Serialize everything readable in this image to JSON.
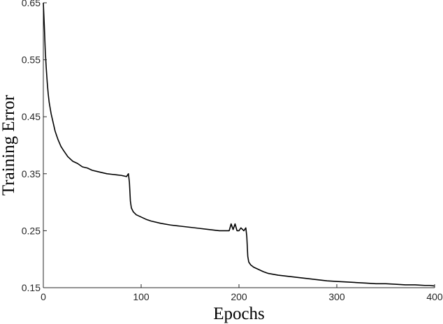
{
  "chart_data": {
    "type": "line",
    "title": "",
    "xlabel": "Epochs",
    "ylabel": "Training Error",
    "xlim": [
      0,
      400
    ],
    "ylim": [
      0.15,
      0.65
    ],
    "xticks": [
      0,
      100,
      200,
      300,
      400
    ],
    "xtick_labels": [
      "0",
      "100",
      "200",
      "300",
      "400"
    ],
    "yticks": [
      0.15,
      0.25,
      0.35,
      0.45,
      0.55,
      0.65
    ],
    "ytick_labels": [
      "0.15",
      "0.25",
      "0.35",
      "0.45",
      "0.55",
      "0.65"
    ],
    "grid": false,
    "legend": "none",
    "series": [
      {
        "color": "#000000",
        "x": [
          0,
          1,
          2,
          3,
          4,
          5,
          6,
          8,
          10,
          12,
          15,
          18,
          21,
          25,
          30,
          35,
          40,
          45,
          50,
          55,
          60,
          65,
          70,
          75,
          80,
          85,
          87,
          88,
          89,
          90,
          92,
          95,
          100,
          105,
          110,
          120,
          130,
          140,
          150,
          160,
          170,
          180,
          190,
          192,
          194,
          196,
          198,
          200,
          202,
          205,
          207,
          208,
          209,
          210,
          212,
          215,
          220,
          225,
          230,
          240,
          250,
          260,
          270,
          280,
          290,
          300,
          310,
          320,
          330,
          340,
          350,
          360,
          370,
          380,
          390,
          395,
          400
        ],
        "y": [
          0.65,
          0.61,
          0.565,
          0.535,
          0.51,
          0.49,
          0.475,
          0.455,
          0.44,
          0.425,
          0.41,
          0.398,
          0.39,
          0.38,
          0.372,
          0.368,
          0.362,
          0.36,
          0.356,
          0.354,
          0.352,
          0.35,
          0.349,
          0.348,
          0.347,
          0.345,
          0.35,
          0.335,
          0.302,
          0.29,
          0.283,
          0.278,
          0.274,
          0.27,
          0.267,
          0.263,
          0.26,
          0.258,
          0.256,
          0.254,
          0.252,
          0.25,
          0.25,
          0.262,
          0.252,
          0.262,
          0.25,
          0.25,
          0.255,
          0.25,
          0.255,
          0.24,
          0.205,
          0.195,
          0.19,
          0.186,
          0.182,
          0.178,
          0.175,
          0.172,
          0.17,
          0.168,
          0.166,
          0.164,
          0.162,
          0.161,
          0.16,
          0.159,
          0.158,
          0.157,
          0.157,
          0.156,
          0.155,
          0.155,
          0.154,
          0.154,
          0.153
        ]
      }
    ]
  }
}
